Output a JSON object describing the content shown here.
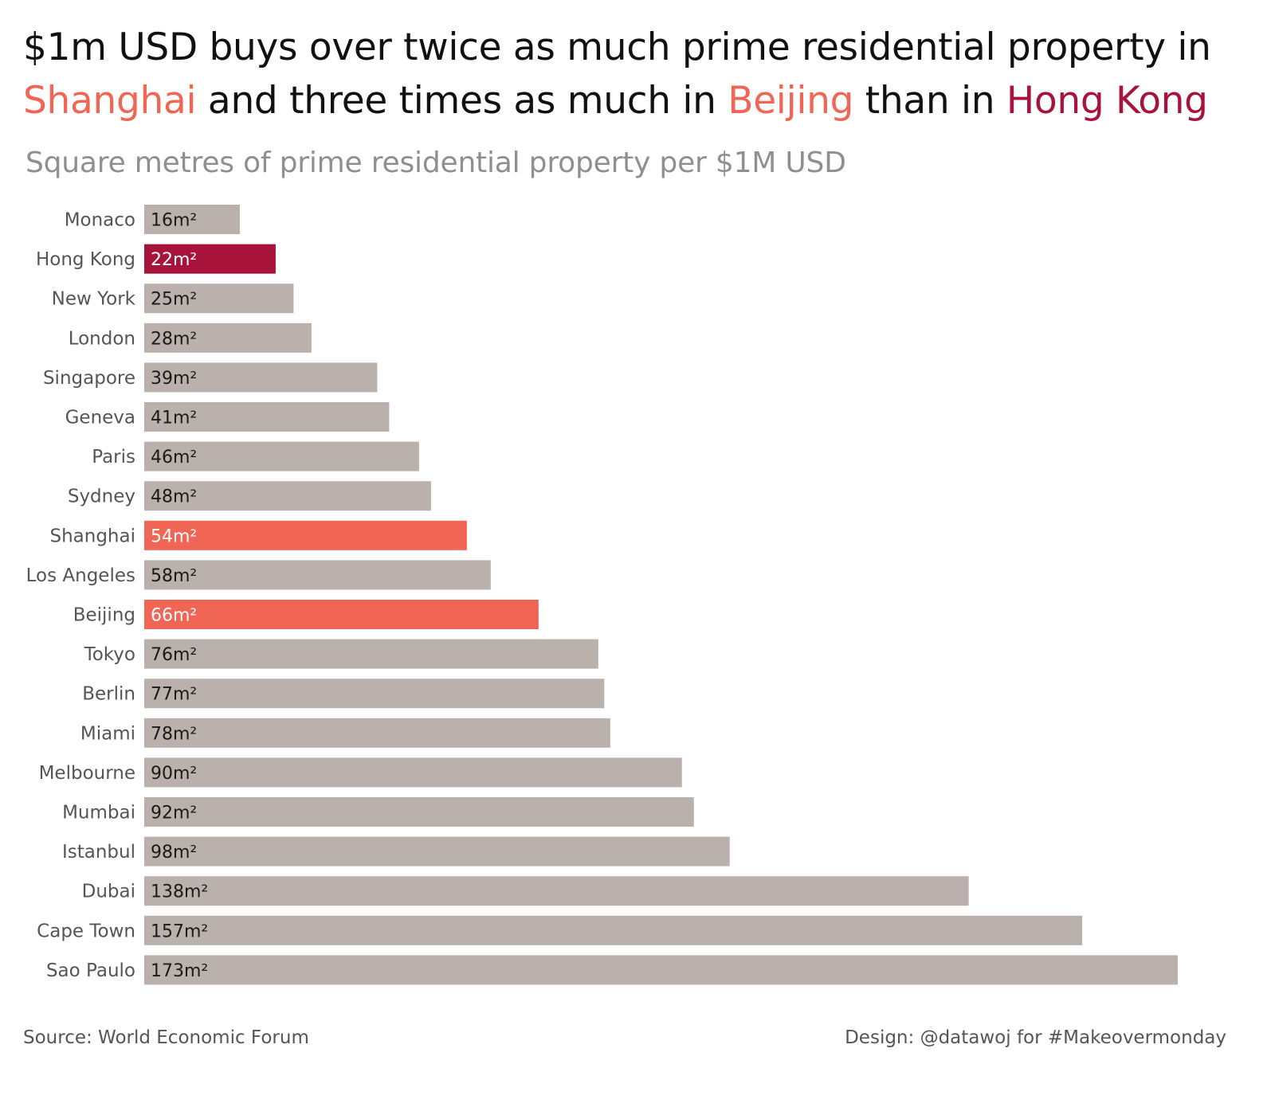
{
  "headline": {
    "part1": "$1m USD buys over twice as much prime residential property in ",
    "shanghai": "Shanghai",
    "part2": " and three times as much in ",
    "beijing": "Beijing",
    "part3": " than in ",
    "hongkong": "Hong Kong"
  },
  "colors": {
    "default_bar": "#BAB0AC",
    "hong_kong": "#A8133B",
    "highlight": "#F06553",
    "label_dark": "#1a1a1a",
    "label_light": "#ffffff"
  },
  "chart_data": {
    "type": "bar",
    "orientation": "horizontal",
    "title": "Square metres of prime residential property per $1M USD",
    "xlabel": "",
    "ylabel": "",
    "grid": false,
    "xlim": [
      0,
      173
    ],
    "unit_suffix": "m²",
    "categories": [
      "Monaco",
      "Hong Kong",
      "New York",
      "London",
      "Singapore",
      "Geneva",
      "Paris",
      "Sydney",
      "Shanghai",
      "Los Angeles",
      "Beijing",
      "Tokyo",
      "Berlin",
      "Miami",
      "Melbourne",
      "Mumbai",
      "Istanbul",
      "Dubai",
      "Cape Town",
      "Sao Paulo"
    ],
    "values": [
      16,
      22,
      25,
      28,
      39,
      41,
      46,
      48,
      54,
      58,
      66,
      76,
      77,
      78,
      90,
      92,
      98,
      138,
      157,
      173
    ],
    "data_labels": [
      "16m²",
      "22m²",
      "25m²",
      "28m²",
      "39m²",
      "41m²",
      "46m²",
      "48m²",
      "54m²",
      "58m²",
      "66m²",
      "76m²",
      "77m²",
      "78m²",
      "90m²",
      "92m²",
      "98m²",
      "138m²",
      "157m²",
      "173m²"
    ],
    "highlights": {
      "Hong Kong": "#A8133B",
      "Shanghai": "#F06553",
      "Beijing": "#F06553"
    }
  },
  "footer": {
    "source": "Source: World Economic Forum",
    "credit": "Design: @datawoj for #Makeovermonday"
  }
}
